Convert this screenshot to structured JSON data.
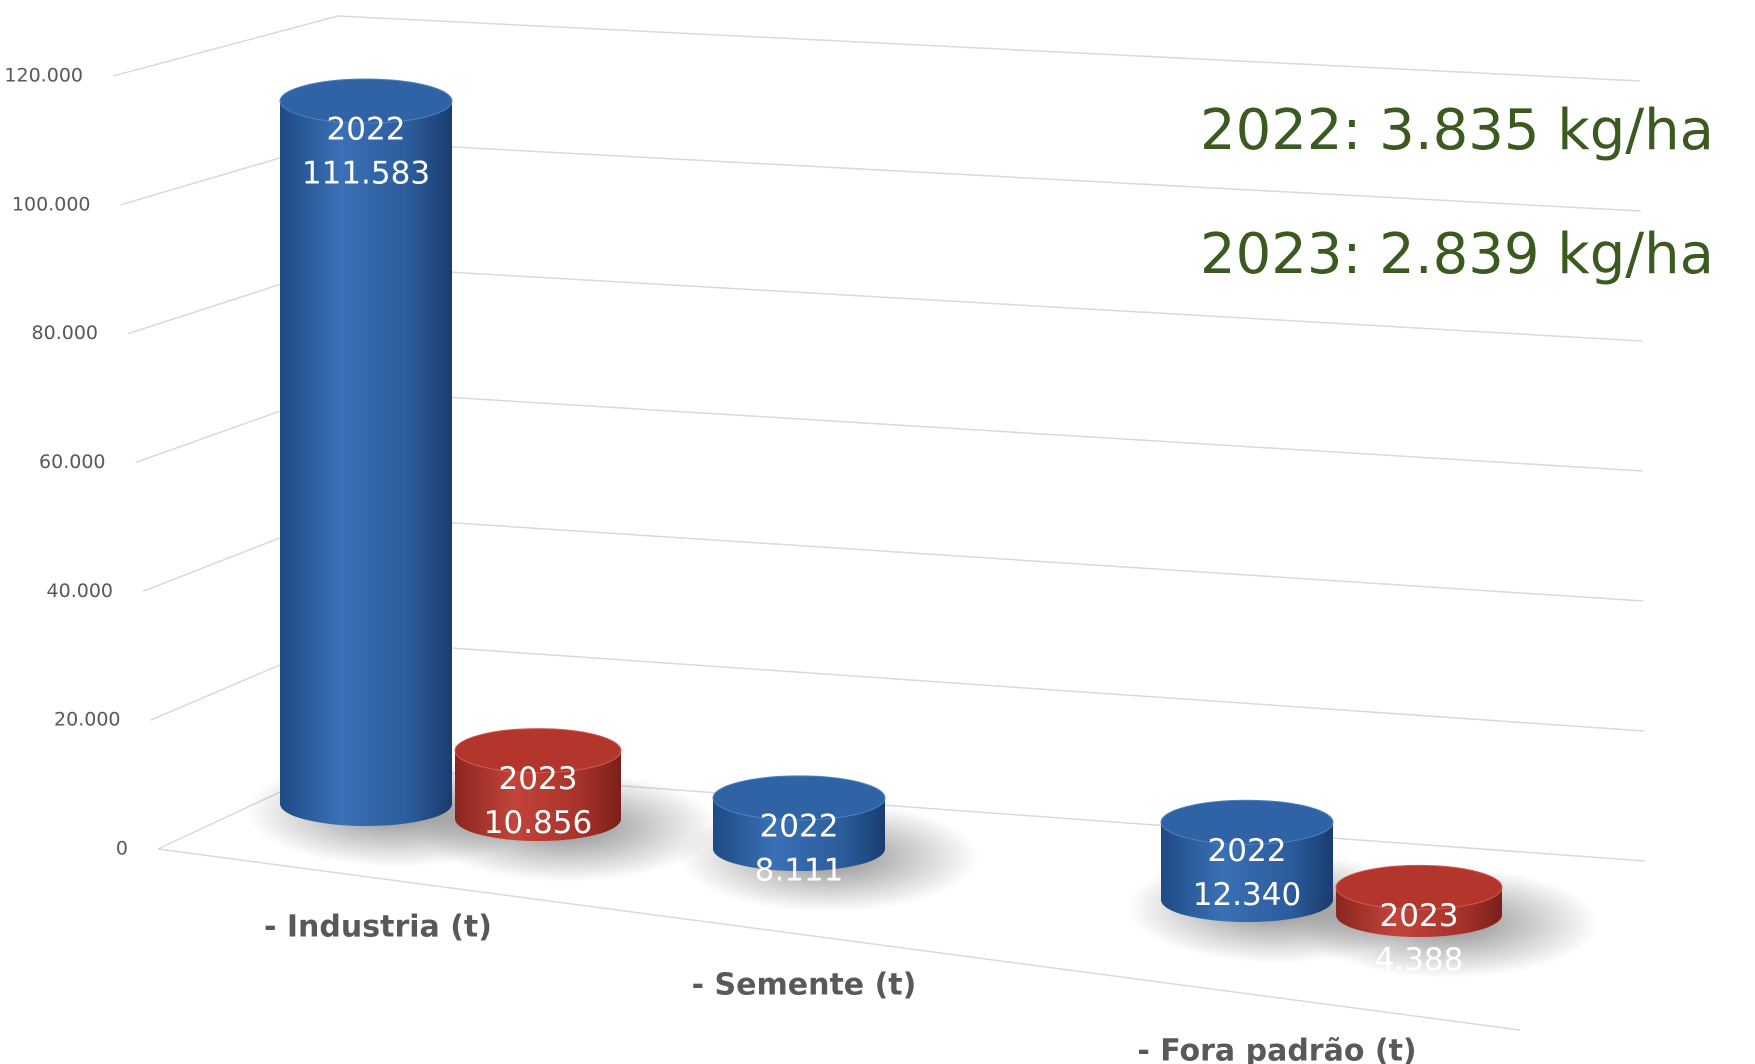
{
  "chart_data": {
    "type": "bar3d",
    "categories": [
      "- Industria  (t)",
      "- Semente (t)",
      "- Fora padrão (t)"
    ],
    "series": [
      {
        "name": "2022",
        "color": "#2f63a6",
        "values": [
          111583,
          8111,
          12340
        ],
        "value_labels": [
          "111.583",
          "8.111",
          "12.340"
        ]
      },
      {
        "name": "2023",
        "color": "#b3352c",
        "values": [
          10856,
          null,
          4388
        ],
        "value_labels": [
          "10.856",
          null,
          "4.388"
        ]
      }
    ],
    "ylim": [
      0,
      120000
    ],
    "yticks": [
      0,
      {
        "value": 20000,
        "label": "20.000"
      },
      {
        "value": 40000,
        "label": "40.000"
      },
      {
        "value": 60000,
        "label": "60.000"
      },
      {
        "value": 80000,
        "label": "80.000"
      },
      {
        "value": 100000,
        "label": "100.000"
      },
      {
        "value": 120000,
        "label": "120.000"
      }
    ],
    "grid": true,
    "annotations": [
      "2022: 3.835 kg/ha",
      "2023: 2.839 kg/ha"
    ]
  }
}
